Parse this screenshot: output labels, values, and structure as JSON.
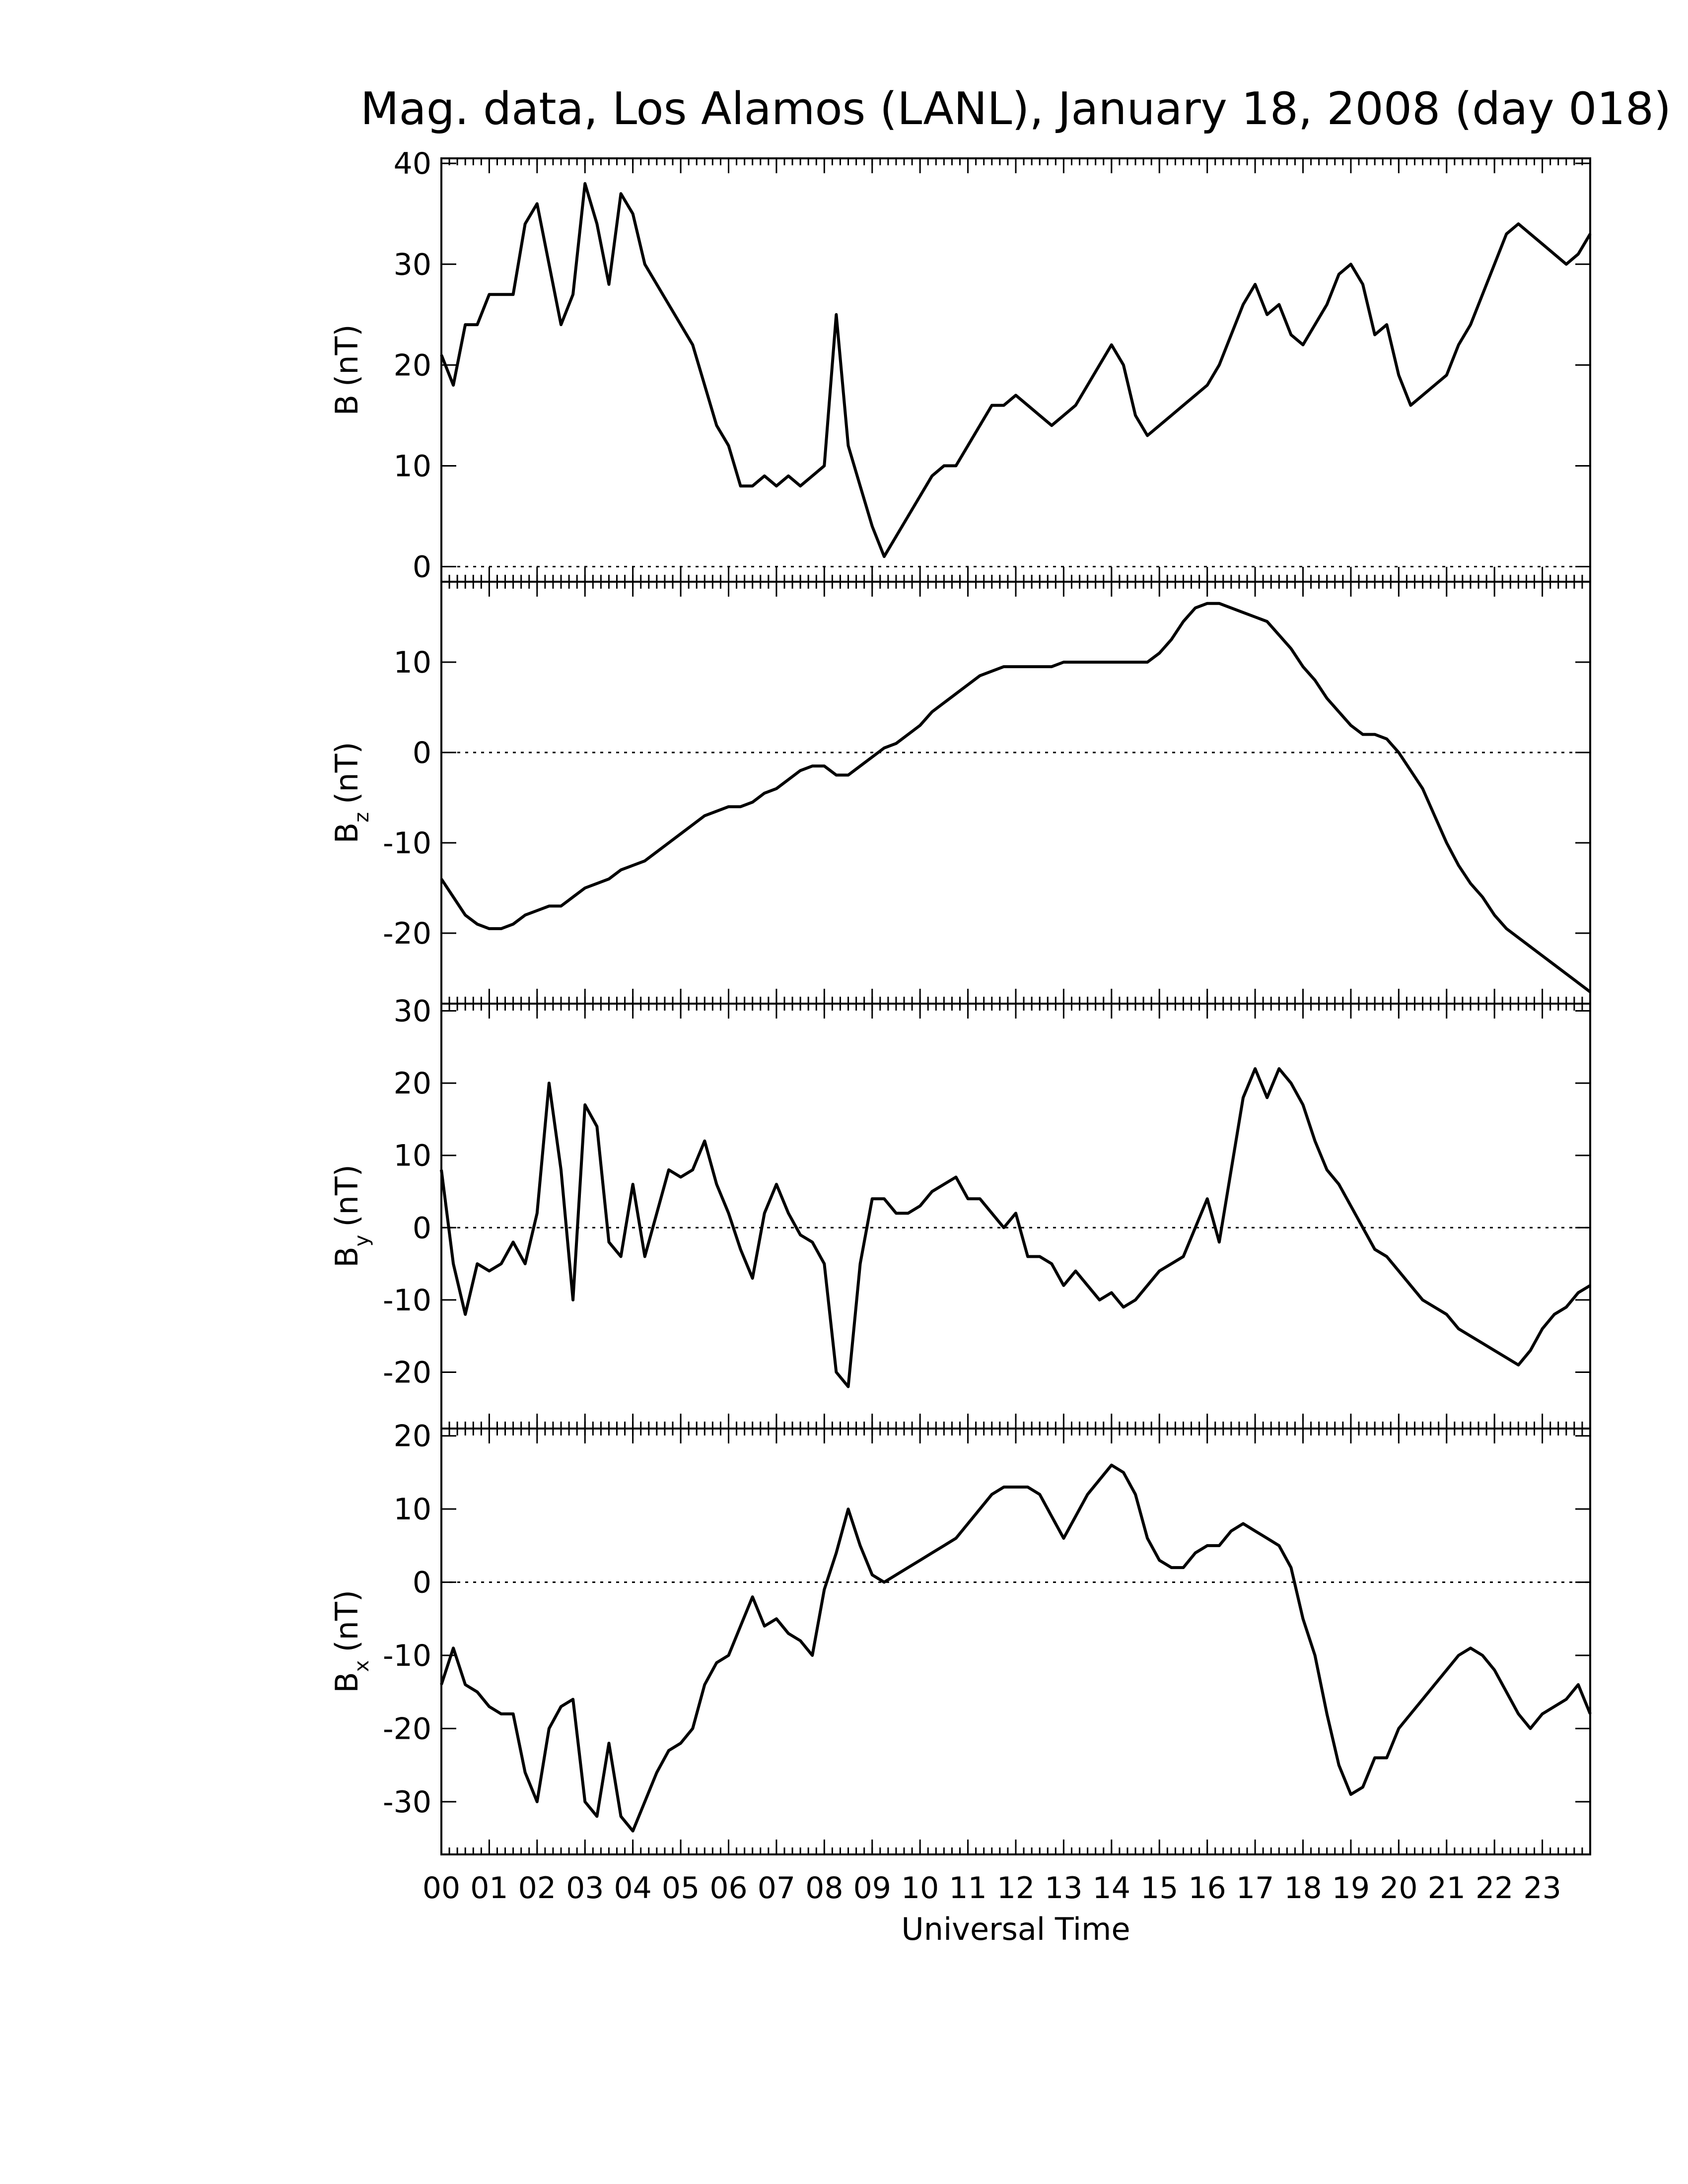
{
  "chart_data": [
    {
      "type": "line",
      "title": "Mag. data, Los Alamos (LANL), January 18, 2008 (day 018)",
      "ylabel": "B",
      "ylabel_unit": "(nT)",
      "color": "#000000",
      "zero_line": true,
      "xlim": [
        0,
        24
      ],
      "ylim": [
        -1.5,
        40.5
      ],
      "yticks": [
        0,
        10,
        20,
        30,
        40
      ],
      "x": [
        0,
        0.25,
        0.5,
        0.75,
        1,
        1.25,
        1.5,
        1.75,
        2,
        2.25,
        2.5,
        2.75,
        3,
        3.25,
        3.5,
        3.75,
        4,
        4.25,
        4.5,
        4.75,
        5,
        5.25,
        5.5,
        5.75,
        6,
        6.25,
        6.5,
        6.75,
        7,
        7.25,
        7.5,
        7.75,
        8,
        8.25,
        8.5,
        8.75,
        9,
        9.25,
        9.5,
        9.75,
        10,
        10.25,
        10.5,
        10.75,
        11,
        11.25,
        11.5,
        11.75,
        12,
        12.25,
        12.5,
        12.75,
        13,
        13.25,
        13.5,
        13.75,
        14,
        14.25,
        14.5,
        14.75,
        15,
        15.25,
        15.5,
        15.75,
        16,
        16.25,
        16.5,
        16.75,
        17,
        17.25,
        17.5,
        17.75,
        18,
        18.25,
        18.5,
        18.75,
        19,
        19.25,
        19.5,
        19.75,
        20,
        20.25,
        20.5,
        20.75,
        21,
        21.25,
        21.5,
        21.75,
        22,
        22.25,
        22.5,
        22.75,
        23,
        23.25,
        23.5,
        23.75,
        24
      ],
      "values": [
        21,
        18,
        24,
        24,
        27,
        27,
        27,
        34,
        36,
        30,
        24,
        27,
        38,
        34,
        28,
        37,
        35,
        30,
        28,
        26,
        24,
        22,
        18,
        14,
        12,
        8,
        8,
        9,
        8,
        9,
        8,
        9,
        10,
        25,
        12,
        8,
        4,
        1,
        3,
        5,
        7,
        9,
        10,
        10,
        12,
        14,
        16,
        16,
        17,
        16,
        15,
        14,
        15,
        16,
        18,
        20,
        22,
        20,
        15,
        13,
        14,
        15,
        16,
        17,
        18,
        20,
        23,
        26,
        28,
        25,
        26,
        23,
        22,
        24,
        26,
        29,
        30,
        28,
        23,
        24,
        19,
        16,
        17,
        18,
        19,
        22,
        24,
        27,
        30,
        33,
        34,
        33,
        32,
        31,
        30,
        31,
        33
      ]
    },
    {
      "type": "line",
      "ylabel": "B",
      "ylabel_sub": "z",
      "ylabel_unit": "(nT)",
      "color": "#000000",
      "zero_line": true,
      "xlim": [
        0,
        24
      ],
      "ylim": [
        -27.8,
        18.9
      ],
      "yticks": [
        -20,
        -10,
        0,
        10
      ],
      "x": [
        0,
        0.25,
        0.5,
        0.75,
        1,
        1.25,
        1.5,
        1.75,
        2,
        2.25,
        2.5,
        2.75,
        3,
        3.25,
        3.5,
        3.75,
        4,
        4.25,
        4.5,
        4.75,
        5,
        5.25,
        5.5,
        5.75,
        6,
        6.25,
        6.5,
        6.75,
        7,
        7.25,
        7.5,
        7.75,
        8,
        8.25,
        8.5,
        8.75,
        9,
        9.25,
        9.5,
        9.75,
        10,
        10.25,
        10.5,
        10.75,
        11,
        11.25,
        11.5,
        11.75,
        12,
        12.25,
        12.5,
        12.75,
        13,
        13.25,
        13.5,
        13.75,
        14,
        14.25,
        14.5,
        14.75,
        15,
        15.25,
        15.5,
        15.75,
        16,
        16.25,
        16.5,
        16.75,
        17,
        17.25,
        17.5,
        17.75,
        18,
        18.25,
        18.5,
        18.75,
        19,
        19.25,
        19.5,
        19.75,
        20,
        20.25,
        20.5,
        20.75,
        21,
        21.25,
        21.5,
        21.75,
        22,
        22.25,
        22.5,
        22.75,
        23,
        23.25,
        23.5,
        23.75,
        24
      ],
      "values": [
        -14,
        -16,
        -18,
        -19,
        -19.5,
        -19.5,
        -19,
        -18,
        -17.5,
        -17,
        -17,
        -16,
        -15,
        -14.5,
        -14,
        -13,
        -12.5,
        -12,
        -11,
        -10,
        -9,
        -8,
        -7,
        -6.5,
        -6,
        -6,
        -5.5,
        -4.5,
        -4,
        -3,
        -2,
        -1.5,
        -1.5,
        -2.5,
        -2.5,
        -1.5,
        -0.5,
        0.5,
        1,
        2,
        3,
        4.5,
        5.5,
        6.5,
        7.5,
        8.5,
        9,
        9.5,
        9.5,
        9.5,
        9.5,
        9.5,
        10,
        10,
        10,
        10,
        10,
        10,
        10,
        10,
        11,
        12.5,
        14.5,
        16,
        16.5,
        16.5,
        16,
        15.5,
        15,
        14.5,
        13,
        11.5,
        9.5,
        8,
        6,
        4.5,
        3,
        2,
        2,
        1.5,
        0,
        -2,
        -4,
        -7,
        -10,
        -12.5,
        -14.5,
        -16,
        -18,
        -19.5,
        -20.5,
        -21.5,
        -22.5,
        -23.5,
        -24.5,
        -25.5,
        -26.5
      ]
    },
    {
      "type": "line",
      "ylabel": "B",
      "ylabel_sub": "y",
      "ylabel_unit": "(nT)",
      "color": "#000000",
      "zero_line": true,
      "xlim": [
        0,
        24
      ],
      "ylim": [
        -27.8,
        31
      ],
      "yticks": [
        -20,
        -10,
        0,
        10,
        20,
        30
      ],
      "x": [
        0,
        0.25,
        0.5,
        0.75,
        1,
        1.25,
        1.5,
        1.75,
        2,
        2.25,
        2.5,
        2.75,
        3,
        3.25,
        3.5,
        3.75,
        4,
        4.25,
        4.5,
        4.75,
        5,
        5.25,
        5.5,
        5.75,
        6,
        6.25,
        6.5,
        6.75,
        7,
        7.25,
        7.5,
        7.75,
        8,
        8.25,
        8.5,
        8.75,
        9,
        9.25,
        9.5,
        9.75,
        10,
        10.25,
        10.5,
        10.75,
        11,
        11.25,
        11.5,
        11.75,
        12,
        12.25,
        12.5,
        12.75,
        13,
        13.25,
        13.5,
        13.75,
        14,
        14.25,
        14.5,
        14.75,
        15,
        15.25,
        15.5,
        15.75,
        16,
        16.25,
        16.5,
        16.75,
        17,
        17.25,
        17.5,
        17.75,
        18,
        18.25,
        18.5,
        18.75,
        19,
        19.25,
        19.5,
        19.75,
        20,
        20.25,
        20.5,
        20.75,
        21,
        21.25,
        21.5,
        21.75,
        22,
        22.25,
        22.5,
        22.75,
        23,
        23.25,
        23.5,
        23.75,
        24
      ],
      "values": [
        8,
        -5,
        -12,
        -5,
        -6,
        -5,
        -2,
        -5,
        2,
        20,
        8,
        -10,
        17,
        14,
        -2,
        -4,
        6,
        -4,
        2,
        8,
        7,
        8,
        12,
        6,
        2,
        -3,
        -7,
        2,
        6,
        2,
        -1,
        -2,
        -5,
        -20,
        -22,
        -5,
        4,
        4,
        2,
        2,
        3,
        5,
        6,
        7,
        4,
        4,
        2,
        0,
        2,
        -4,
        -4,
        -5,
        -8,
        -6,
        -8,
        -10,
        -9,
        -11,
        -10,
        -8,
        -6,
        -5,
        -4,
        0,
        4,
        -2,
        8,
        18,
        22,
        18,
        22,
        20,
        17,
        12,
        8,
        6,
        3,
        0,
        -3,
        -4,
        -6,
        -8,
        -10,
        -11,
        -12,
        -14,
        -15,
        -16,
        -17,
        -18,
        -19,
        -17,
        -14,
        -12,
        -11,
        -9,
        -8
      ]
    },
    {
      "type": "line",
      "ylabel": "B",
      "ylabel_sub": "x",
      "ylabel_unit": "(nT)",
      "xlabel": "Universal Time",
      "color": "#000000",
      "zero_line": true,
      "xlim": [
        0,
        24
      ],
      "ylim": [
        -37.2,
        21
      ],
      "yticks": [
        -30,
        -20,
        -10,
        0,
        10,
        20
      ],
      "xticks": [
        {
          "value": 0,
          "label": "00"
        },
        {
          "value": 1,
          "label": "01"
        },
        {
          "value": 2,
          "label": "02"
        },
        {
          "value": 3,
          "label": "03"
        },
        {
          "value": 4,
          "label": "04"
        },
        {
          "value": 5,
          "label": "05"
        },
        {
          "value": 6,
          "label": "06"
        },
        {
          "value": 7,
          "label": "07"
        },
        {
          "value": 8,
          "label": "08"
        },
        {
          "value": 9,
          "label": "09"
        },
        10,
        11,
        12,
        13,
        14,
        15,
        16,
        17,
        18,
        19,
        20,
        21,
        22,
        23
      ],
      "x": [
        0,
        0.25,
        0.5,
        0.75,
        1,
        1.25,
        1.5,
        1.75,
        2,
        2.25,
        2.5,
        2.75,
        3,
        3.25,
        3.5,
        3.75,
        4,
        4.25,
        4.5,
        4.75,
        5,
        5.25,
        5.5,
        5.75,
        6,
        6.25,
        6.5,
        6.75,
        7,
        7.25,
        7.5,
        7.75,
        8,
        8.25,
        8.5,
        8.75,
        9,
        9.25,
        9.5,
        9.75,
        10,
        10.25,
        10.5,
        10.75,
        11,
        11.25,
        11.5,
        11.75,
        12,
        12.25,
        12.5,
        12.75,
        13,
        13.25,
        13.5,
        13.75,
        14,
        14.25,
        14.5,
        14.75,
        15,
        15.25,
        15.5,
        15.75,
        16,
        16.25,
        16.5,
        16.75,
        17,
        17.25,
        17.5,
        17.75,
        18,
        18.25,
        18.5,
        18.75,
        19,
        19.25,
        19.5,
        19.75,
        20,
        20.25,
        20.5,
        20.75,
        21,
        21.25,
        21.5,
        21.75,
        22,
        22.25,
        22.5,
        22.75,
        23,
        23.25,
        23.5,
        23.75,
        24
      ],
      "values": [
        -14,
        -9,
        -14,
        -15,
        -17,
        -18,
        -18,
        -26,
        -30,
        -20,
        -17,
        -16,
        -30,
        -32,
        -22,
        -32,
        -34,
        -30,
        -26,
        -23,
        -22,
        -20,
        -14,
        -11,
        -10,
        -6,
        -2,
        -6,
        -5,
        -7,
        -8,
        -10,
        -1,
        4,
        10,
        5,
        1,
        0,
        1,
        2,
        3,
        4,
        5,
        6,
        8,
        10,
        12,
        13,
        13,
        13,
        12,
        9,
        6,
        9,
        12,
        14,
        16,
        15,
        12,
        6,
        3,
        2,
        2,
        4,
        5,
        5,
        7,
        8,
        7,
        6,
        5,
        2,
        -5,
        -10,
        -18,
        -25,
        -29,
        -28,
        -24,
        -24,
        -20,
        -18,
        -16,
        -14,
        -12,
        -10,
        -9,
        -10,
        -12,
        -15,
        -18,
        -20,
        -18,
        -17,
        -16,
        -14,
        -18
      ]
    }
  ]
}
